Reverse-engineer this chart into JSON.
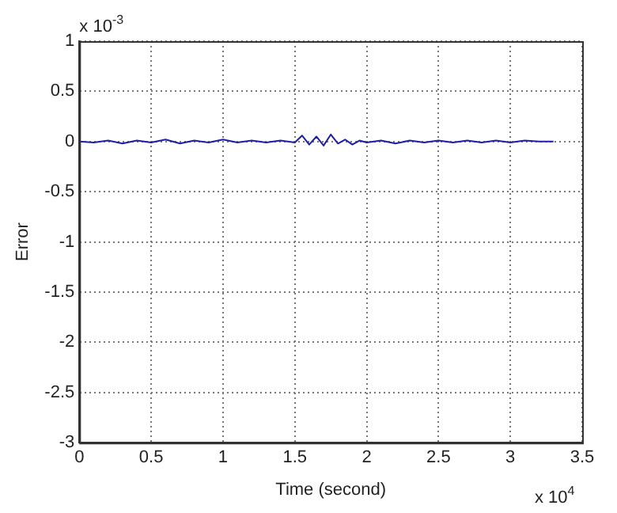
{
  "chart_data": {
    "type": "line",
    "xlabel": "Time (second)",
    "ylabel": "Error",
    "x": [
      0,
      0.1,
      0.2,
      0.3,
      0.4,
      0.5,
      0.6,
      0.7,
      0.8,
      0.9,
      1.0,
      1.1,
      1.2,
      1.3,
      1.4,
      1.5,
      1.55,
      1.6,
      1.65,
      1.7,
      1.75,
      1.8,
      1.85,
      1.9,
      1.95,
      2.0,
      2.1,
      2.2,
      2.3,
      2.4,
      2.5,
      2.6,
      2.7,
      2.8,
      2.9,
      3.0,
      3.1,
      3.2,
      3.3
    ],
    "series": [
      {
        "color": "#1f1fa8",
        "values": [
          0,
          -0.01,
          0.01,
          -0.02,
          0.01,
          -0.01,
          0.02,
          -0.02,
          0.01,
          -0.01,
          0.02,
          -0.01,
          0.01,
          -0.01,
          0.01,
          -0.01,
          0.06,
          -0.03,
          0.05,
          -0.04,
          0.07,
          -0.02,
          0.02,
          -0.03,
          0.01,
          -0.01,
          0.01,
          -0.02,
          0.01,
          -0.01,
          0.01,
          -0.01,
          0.01,
          -0.01,
          0.01,
          -0.01,
          0.01,
          0,
          0
        ]
      }
    ],
    "xlim": [
      0,
      3.5
    ],
    "xticks": [
      0,
      0.5,
      1,
      1.5,
      2,
      2.5,
      3,
      3.5
    ],
    "ylim": [
      -3,
      1
    ],
    "yticks": [
      -3,
      -2.5,
      -2,
      -1.5,
      -1,
      -0.5,
      0,
      0.5,
      1
    ],
    "grid": true,
    "line_style": "solid",
    "marker": "none",
    "annotations": [
      "x 10$^{-3}$",
      "x 10$^{4}$"
    ]
  }
}
